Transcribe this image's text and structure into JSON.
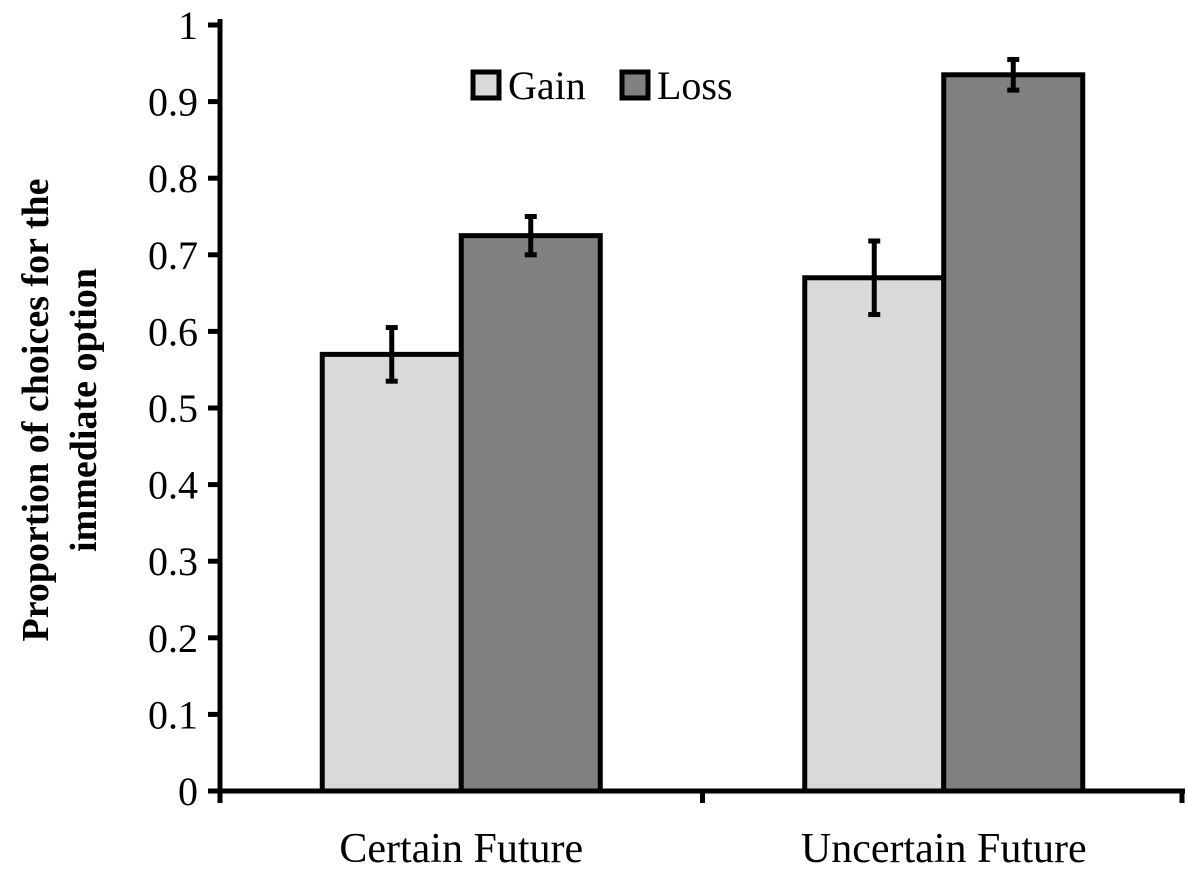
{
  "chart_data": {
    "type": "bar",
    "title": "",
    "xlabel": "",
    "ylabel_lines": [
      "Proportion of choices for the",
      "immediate option"
    ],
    "categories": [
      "Certain Future",
      "Uncertain Future"
    ],
    "ylim": [
      0,
      1
    ],
    "yticks": [
      "0",
      "0.1",
      "0.2",
      "0.3",
      "0.4",
      "0.5",
      "0.6",
      "0.7",
      "0.8",
      "0.9",
      "1"
    ],
    "legend_position": "top-center",
    "grid": false,
    "series": [
      {
        "name": "Gain",
        "color": "#d9d9d9",
        "values": [
          0.57,
          0.67
        ],
        "error": [
          0.035,
          0.048
        ]
      },
      {
        "name": "Loss",
        "color": "#808080",
        "values": [
          0.725,
          0.935
        ],
        "error": [
          0.025,
          0.02
        ]
      }
    ]
  }
}
